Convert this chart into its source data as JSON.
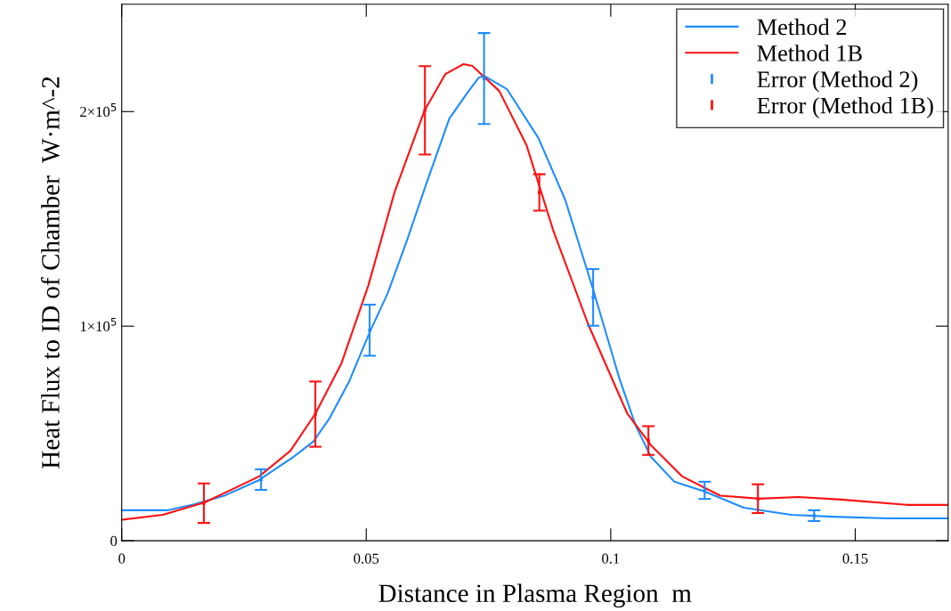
{
  "chart_data": {
    "type": "line",
    "xlabel": "Distance in Plasma Region  m",
    "ylabel": "Heat Flux to ID of Chamber  W·m^-2",
    "xlim": [
      0,
      0.169
    ],
    "ylim": [
      0,
      250000
    ],
    "xticks": [
      0,
      0.05,
      0.1,
      0.15
    ],
    "yticks": [
      0,
      {
        "value": 100000,
        "label": "1×10$^{5}$"
      },
      {
        "value": 200000,
        "label": "2×10$^{5}$"
      }
    ],
    "grid": false,
    "legend": "top right",
    "line_style": "solid",
    "series": [
      {
        "name": "Method 2",
        "color": "#1e8cff",
        "x": [
          0,
          0.0093,
          0.0146,
          0.021,
          0.0281,
          0.0352,
          0.0392,
          0.0425,
          0.0464,
          0.0507,
          0.0544,
          0.0584,
          0.0622,
          0.067,
          0.0703,
          0.073,
          0.0741,
          0.0788,
          0.0852,
          0.0907,
          0.0964,
          0.1018,
          0.1051,
          0.1082,
          0.113,
          0.1193,
          0.1272,
          0.1369,
          0.1454,
          0.1566,
          0.169
        ],
        "values": [
          14200,
          14200,
          16900,
          21000,
          28300,
          39200,
          46300,
          57100,
          73700,
          97100,
          115400,
          140400,
          165800,
          196700,
          207500,
          215800,
          216700,
          210400,
          187700,
          158800,
          117100,
          75400,
          53700,
          39200,
          27500,
          22900,
          15400,
          12100,
          11200,
          10400,
          10400
        ]
      },
      {
        "name": "Method 1B",
        "color": "#ff1010",
        "x": [
          0,
          0.0084,
          0.017,
          0.0281,
          0.0345,
          0.0396,
          0.0449,
          0.0504,
          0.0558,
          0.0619,
          0.0662,
          0.0699,
          0.0717,
          0.0772,
          0.0828,
          0.0883,
          0.0954,
          0.1034,
          0.1082,
          0.1146,
          0.1224,
          0.1305,
          0.1383,
          0.1471,
          0.1606,
          0.169
        ],
        "values": [
          9800,
          12100,
          17900,
          30000,
          41900,
          59200,
          82500,
          118700,
          162500,
          200400,
          217500,
          222100,
          221300,
          209600,
          184200,
          144200,
          100800,
          59200,
          44600,
          30000,
          21000,
          19600,
          20400,
          19200,
          16700,
          16700
        ]
      },
      {
        "name": "Error (Method 2)",
        "color": "#1e8cff",
        "type": "scatter",
        "x": [
          0.0285,
          0.0507,
          0.0741,
          0.0964,
          0.1192,
          0.1416
        ],
        "values": [
          28500,
          98100,
          215400,
          113400,
          23500,
          11700
        ],
        "errors": [
          4800,
          11900,
          21200,
          13200,
          4000,
          2500
        ]
      },
      {
        "name": "Error (Method 1B)",
        "color": "#ff1010",
        "type": "scatter",
        "x": [
          0.0168,
          0.0396,
          0.062,
          0.0854,
          0.1077,
          0.1301
        ],
        "values": [
          17500,
          59000,
          200600,
          162300,
          46700,
          19600
        ],
        "errors": [
          9200,
          15200,
          20600,
          8500,
          6700,
          6700
        ]
      }
    ]
  }
}
